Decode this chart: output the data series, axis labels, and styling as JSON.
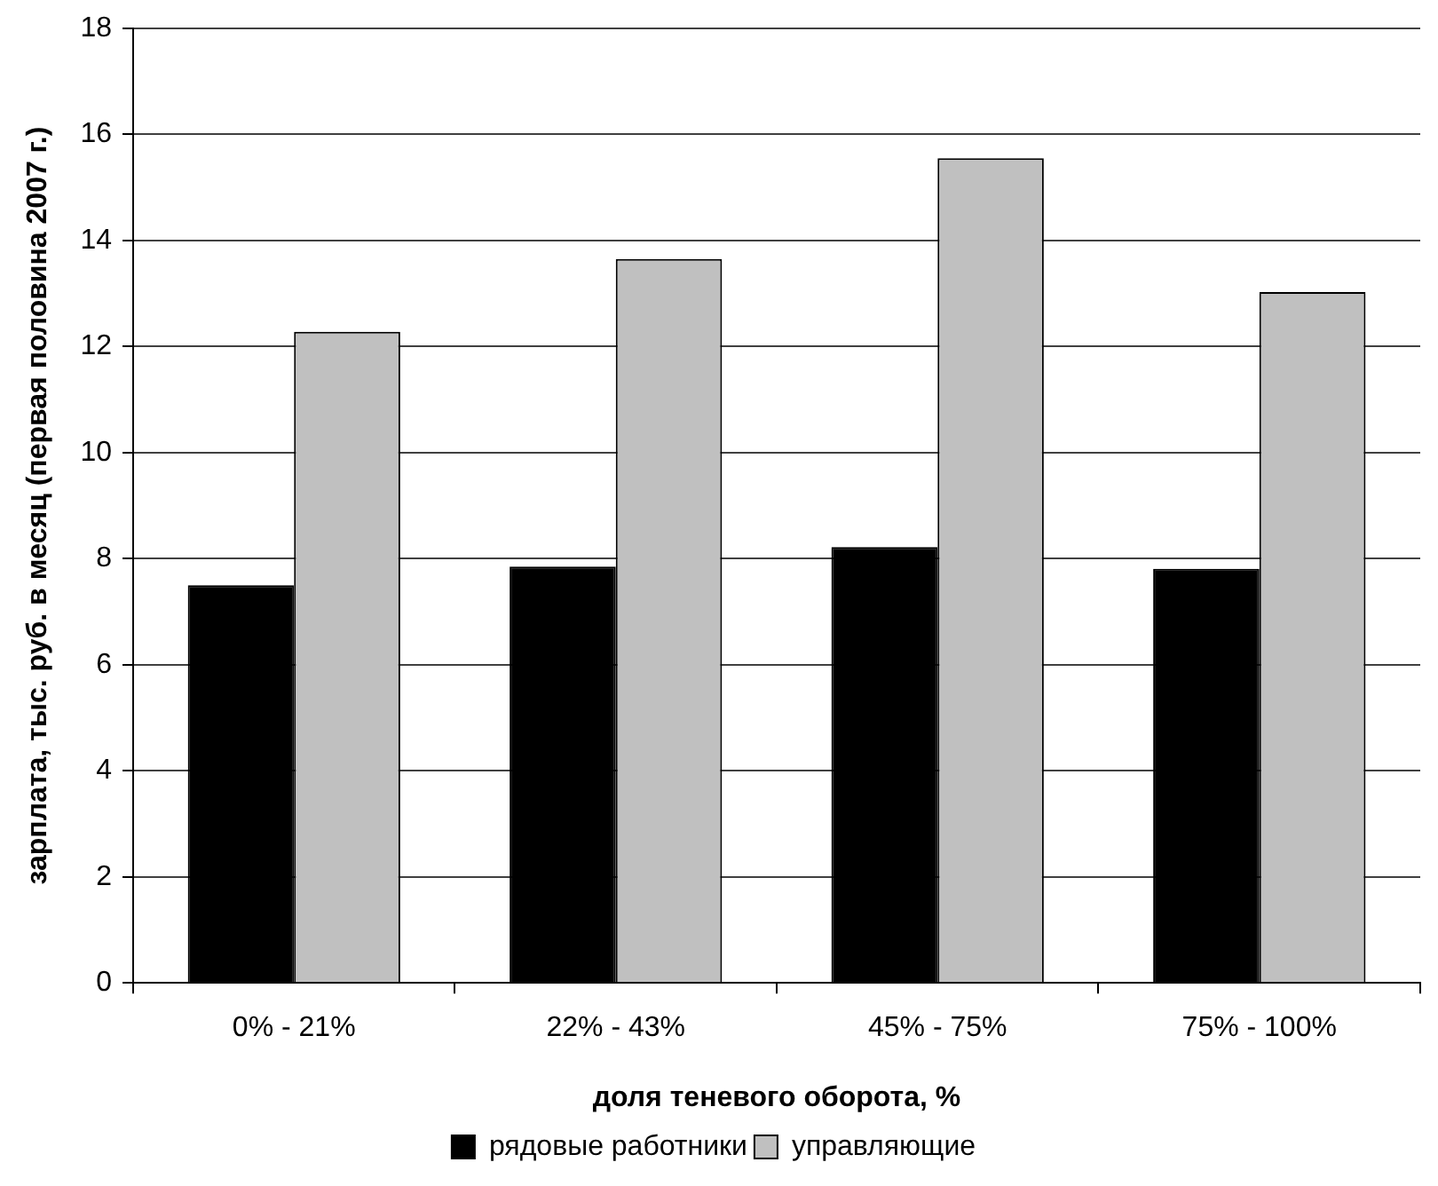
{
  "chart_data": {
    "type": "bar",
    "xlabel": "доля теневого оборота, %",
    "ylabel": "зарплата, тыс. руб. в месяц (первая половина 2007 г.)",
    "categories": [
      "0% - 21%",
      "22% - 43%",
      "45% - 75%",
      "75% - 100%"
    ],
    "series": [
      {
        "name": "рядовые работники",
        "color": "#000000",
        "values": [
          7.5,
          7.85,
          8.22,
          7.81
        ]
      },
      {
        "name": "управляющие",
        "color": "#c0c0c0",
        "values": [
          12.28,
          13.65,
          15.55,
          13.03
        ]
      }
    ],
    "ylim": [
      0,
      18
    ],
    "yticks": [
      0,
      2,
      4,
      6,
      8,
      10,
      12,
      14,
      16,
      18
    ],
    "grid": "y",
    "legend": "bottom"
  }
}
